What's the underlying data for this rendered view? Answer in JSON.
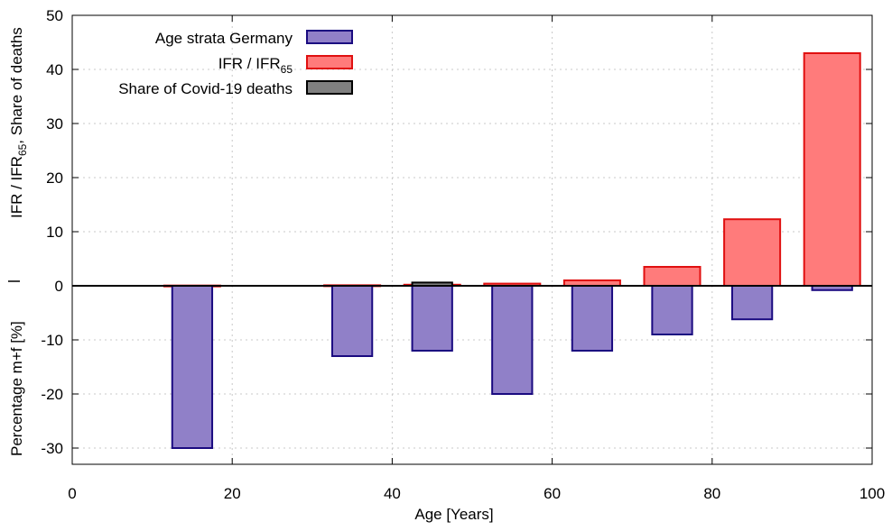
{
  "chart_data": {
    "type": "bar",
    "xlabel": "Age [Years]",
    "ylabel_upper": "IFR / IFR",
    "ylabel_upper_sub": "65",
    "ylabel_upper_tail": ",   Share of deaths",
    "ylabel_lower": "Percentage m+f [%]",
    "xlim": [
      0,
      100
    ],
    "ylim": [
      -33,
      50
    ],
    "xticks": [
      0,
      20,
      40,
      60,
      80,
      100
    ],
    "yticks": [
      -30,
      -20,
      -10,
      0,
      10,
      20,
      30,
      40,
      50
    ],
    "grid": true,
    "legend_position": "top-left",
    "colors": {
      "age_fill": "#9080c8",
      "age_stroke": "#1a0a80",
      "ifr_fill": "#ff7b7b",
      "ifr_stroke": "#e01010",
      "covid_fill": "#808080",
      "covid_stroke": "#000000"
    },
    "series": [
      {
        "name": "Age strata Germany",
        "key": "age",
        "points": [
          {
            "x": 15,
            "width": 5,
            "value": -30
          },
          {
            "x": 35,
            "width": 5,
            "value": -13
          },
          {
            "x": 45,
            "width": 5,
            "value": -12
          },
          {
            "x": 55,
            "width": 5,
            "value": -20
          },
          {
            "x": 65,
            "width": 5,
            "value": -12
          },
          {
            "x": 75,
            "width": 5,
            "value": -9
          },
          {
            "x": 85,
            "width": 5,
            "value": -6.2
          },
          {
            "x": 95,
            "width": 5,
            "value": -0.8
          }
        ]
      },
      {
        "name": "IFR / IFR",
        "name_sub": "65",
        "key": "ifr",
        "points": [
          {
            "x": 15,
            "width": 7,
            "value": 0.05
          },
          {
            "x": 35,
            "width": 7,
            "value": 0.1
          },
          {
            "x": 45,
            "width": 7,
            "value": 0.2
          },
          {
            "x": 55,
            "width": 7,
            "value": 0.4
          },
          {
            "x": 65,
            "width": 7,
            "value": 1.0
          },
          {
            "x": 75,
            "width": 7,
            "value": 3.5
          },
          {
            "x": 85,
            "width": 7,
            "value": 12.3
          },
          {
            "x": 95,
            "width": 7,
            "value": 43
          }
        ]
      },
      {
        "name": "Share of Covid-19 deaths",
        "key": "covid",
        "points": [
          {
            "x": 45,
            "width": 5,
            "value": 0.6
          }
        ]
      }
    ]
  }
}
